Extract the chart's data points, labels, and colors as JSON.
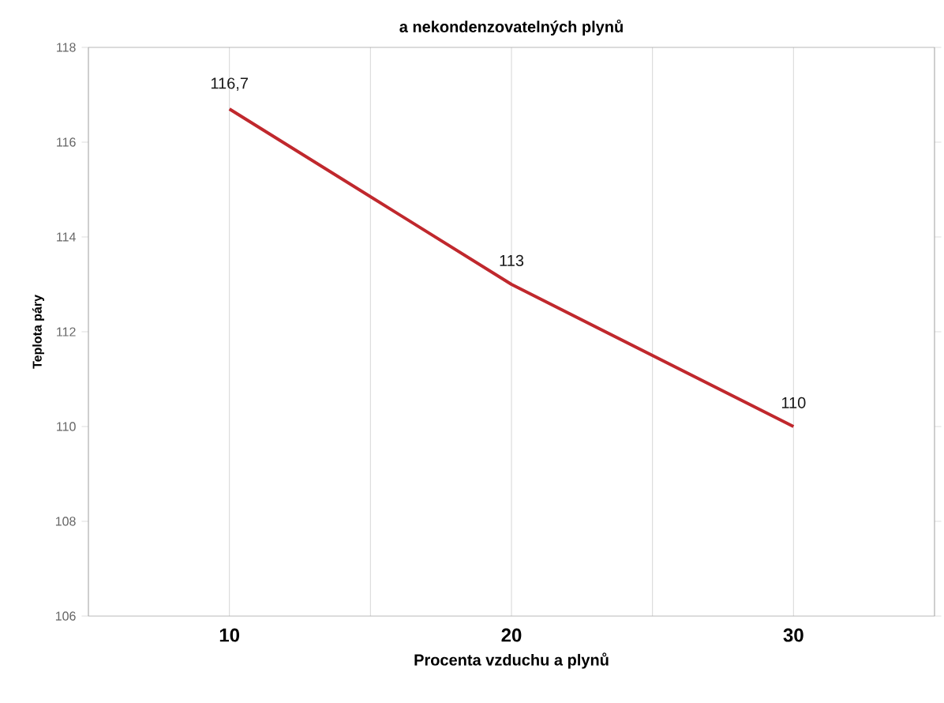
{
  "chart_data": {
    "type": "line",
    "title": "a nekondenzovatelných plynů",
    "xlabel": "Procenta vzduchu a plynů",
    "ylabel": "Teplota páry",
    "x": [
      10,
      20,
      30
    ],
    "series": [
      {
        "color": "#c0282d",
        "values": [
          116.7,
          113,
          110
        ],
        "value_labels": [
          "116,7",
          "113",
          "110"
        ]
      }
    ],
    "xlim": [
      5,
      35
    ],
    "xticks": [
      {
        "value": 5,
        "label": null
      },
      10,
      {
        "value": 15,
        "label": null
      },
      20,
      {
        "value": 25,
        "label": null
      },
      30,
      {
        "value": 35,
        "label": null
      }
    ],
    "ylim": [
      106,
      118
    ],
    "yticks": [
      106,
      108,
      110,
      112,
      114,
      116,
      118
    ],
    "grid": "x",
    "marker": "none",
    "line_style": "solid"
  }
}
